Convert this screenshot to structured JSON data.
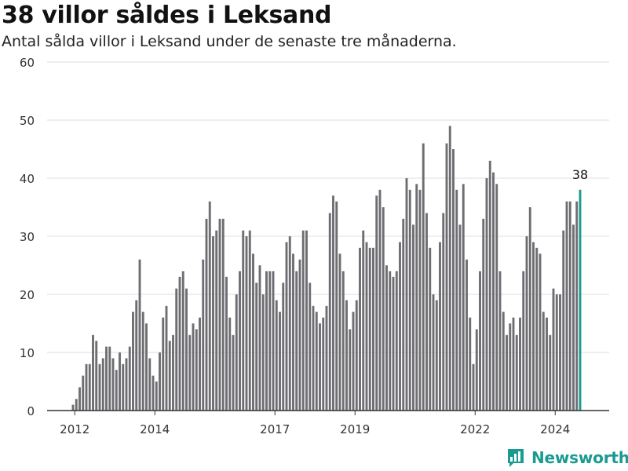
{
  "header": {
    "title": "38 villor såldes i Leksand",
    "subtitle": "Antal sålda villor i Leksand under de senaste tre månaderna."
  },
  "brand": {
    "name": "Newsworthy"
  },
  "colors": {
    "bar": "#6e6d72",
    "highlight": "#1a9a91",
    "grid": "#dddddd",
    "axis": "#333333"
  },
  "chart_data": {
    "type": "bar",
    "title": "38 villor såldes i Leksand",
    "subtitle": "Antal sålda villor i Leksand under de senaste tre månaderna.",
    "xlabel": "",
    "ylabel": "",
    "ylim": [
      0,
      60
    ],
    "yticks": [
      0,
      10,
      20,
      30,
      40,
      50,
      60
    ],
    "xticks": [
      "2012",
      "2014",
      "2017",
      "2019",
      "2022",
      "2024"
    ],
    "grid": true,
    "highlight_label": "38",
    "series": [
      {
        "values": [
          1,
          2,
          4,
          6,
          8,
          8,
          13,
          12,
          8,
          9,
          11,
          11,
          9,
          7,
          10,
          8,
          9,
          11,
          17,
          19,
          26,
          17,
          15,
          9,
          6,
          5,
          10,
          16,
          18,
          12,
          13,
          21,
          23,
          24,
          21,
          13,
          15,
          14,
          16,
          26,
          33,
          36,
          30,
          31,
          33,
          33,
          23,
          16,
          13,
          20,
          24,
          31,
          30,
          31,
          27,
          22,
          25,
          20,
          24,
          24,
          24,
          19,
          17,
          22,
          29,
          30,
          27,
          24,
          26,
          31,
          31,
          22,
          18,
          17,
          15,
          16,
          18,
          34,
          37,
          36,
          27,
          24,
          19,
          14,
          17,
          19,
          28,
          31,
          29,
          28,
          28,
          37,
          38,
          35,
          25,
          24,
          23,
          24,
          29,
          33,
          40,
          38,
          32,
          39,
          38,
          46,
          34,
          28,
          20,
          19,
          29,
          34,
          46,
          49,
          45,
          38,
          32,
          39,
          26,
          16,
          8,
          14,
          24,
          33,
          40,
          43,
          41,
          39,
          24,
          17,
          13,
          15,
          16,
          13,
          16,
          24,
          30,
          35,
          29,
          28,
          27,
          17,
          16,
          13,
          21,
          20,
          20,
          31,
          36,
          36,
          32,
          36,
          38
        ]
      }
    ]
  }
}
